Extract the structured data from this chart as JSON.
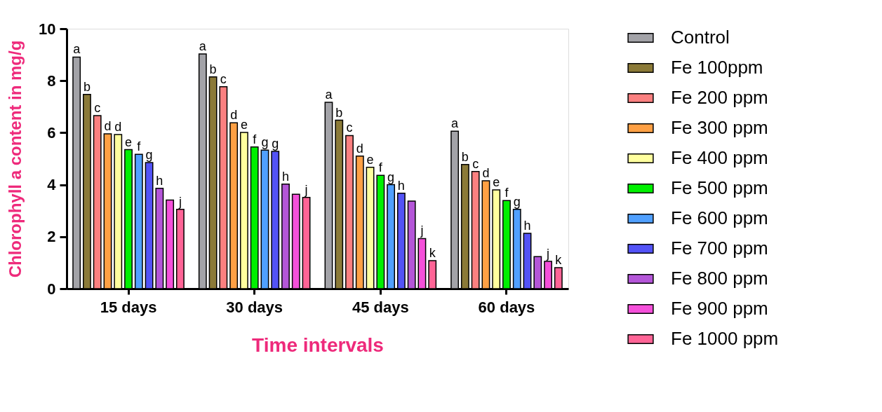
{
  "chart_data": {
    "type": "bar",
    "xlabel": "Time intervals",
    "ylabel": "Chlorophyll a content in mg/g",
    "categories": [
      "15 days",
      "30 days",
      "45 days",
      "60 days"
    ],
    "ylim": [
      0,
      10
    ],
    "yticks": [
      0,
      2,
      4,
      6,
      8,
      10
    ],
    "grid": false,
    "legend": "right",
    "series": [
      {
        "name": "Control",
        "color": "#a3a3a8",
        "values": [
          8.91,
          9.03,
          7.17,
          6.06
        ],
        "value_labels": [
          "a",
          "a",
          "a",
          "a"
        ]
      },
      {
        "name": "Fe 100ppm",
        "color": "#8b7a38",
        "values": [
          7.47,
          8.15,
          6.48,
          4.78
        ],
        "value_labels": [
          "b",
          "b",
          "b",
          "b"
        ]
      },
      {
        "name": "Fe 200 ppm",
        "color": "#fb8080",
        "values": [
          6.66,
          7.77,
          5.89,
          4.51
        ],
        "value_labels": [
          "c",
          "c",
          "c",
          "c"
        ]
      },
      {
        "name": "Fe 300 ppm",
        "color": "#ffa044",
        "values": [
          5.96,
          6.38,
          5.1,
          4.15
        ],
        "value_labels": [
          "d",
          "d",
          "d",
          "d"
        ]
      },
      {
        "name": "Fe 400 ppm",
        "color": "#ffff9e",
        "values": [
          5.93,
          6.01,
          4.67,
          3.8
        ],
        "value_labels": [
          "d",
          "e",
          "e",
          "e"
        ]
      },
      {
        "name": "Fe 500 ppm",
        "color": "#00f000",
        "values": [
          5.35,
          5.45,
          4.36,
          3.39
        ],
        "value_labels": [
          "e",
          "f",
          "f",
          "f"
        ]
      },
      {
        "name": "Fe 600 ppm",
        "color": "#50a0ff",
        "values": [
          5.17,
          5.33,
          4.0,
          3.05
        ],
        "value_labels": [
          "f",
          "g",
          "g",
          "g"
        ]
      },
      {
        "name": "Fe 700 ppm",
        "color": "#5353f6",
        "values": [
          4.85,
          5.28,
          3.67,
          2.13
        ],
        "value_labels": [
          "g",
          "g",
          "h",
          "h"
        ]
      },
      {
        "name": "Fe 800 ppm",
        "color": "#b456d8",
        "values": [
          3.86,
          4.02,
          3.37,
          1.23
        ],
        "value_labels": [
          "h",
          "h",
          null,
          null
        ]
      },
      {
        "name": "Fe 900 ppm",
        "color": "#f550da",
        "values": [
          3.41,
          3.63,
          1.93,
          1.05
        ],
        "value_labels": [
          null,
          null,
          "j",
          "j"
        ]
      },
      {
        "name": "Fe 1000 ppm",
        "color": "#ff6496",
        "values": [
          3.05,
          3.51,
          1.08,
          0.81
        ],
        "value_labels": [
          "j",
          "j",
          "k",
          "k"
        ]
      }
    ]
  }
}
